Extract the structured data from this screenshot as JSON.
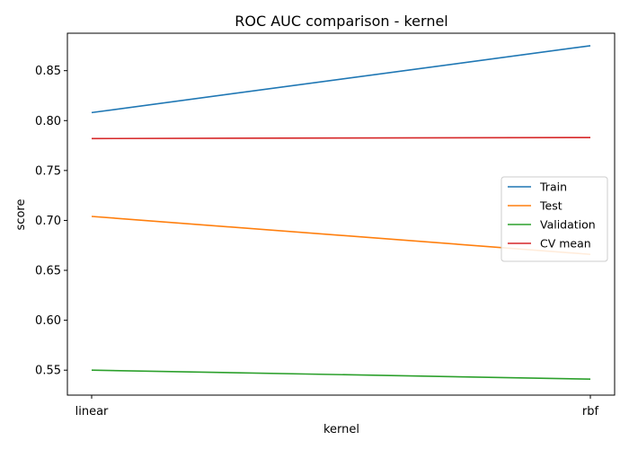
{
  "chart_data": {
    "type": "line",
    "title": "ROC AUC comparison - kernel",
    "xlabel": "kernel",
    "ylabel": "score",
    "categories": [
      "linear",
      "rbf"
    ],
    "ylim": [
      0.525,
      0.8875
    ],
    "yticks": [
      "0.55",
      "0.60",
      "0.65",
      "0.70",
      "0.75",
      "0.80",
      "0.85"
    ],
    "grid": false,
    "legend_position": "center-right",
    "series": [
      {
        "name": "Train",
        "color": "#1f77b4",
        "values": [
          0.808,
          0.875
        ]
      },
      {
        "name": "Test",
        "color": "#ff7f0e",
        "values": [
          0.704,
          0.666
        ]
      },
      {
        "name": "Validation",
        "color": "#2ca02c",
        "values": [
          0.55,
          0.541
        ]
      },
      {
        "name": "CV mean",
        "color": "#d62728",
        "values": [
          0.782,
          0.783
        ]
      }
    ]
  }
}
